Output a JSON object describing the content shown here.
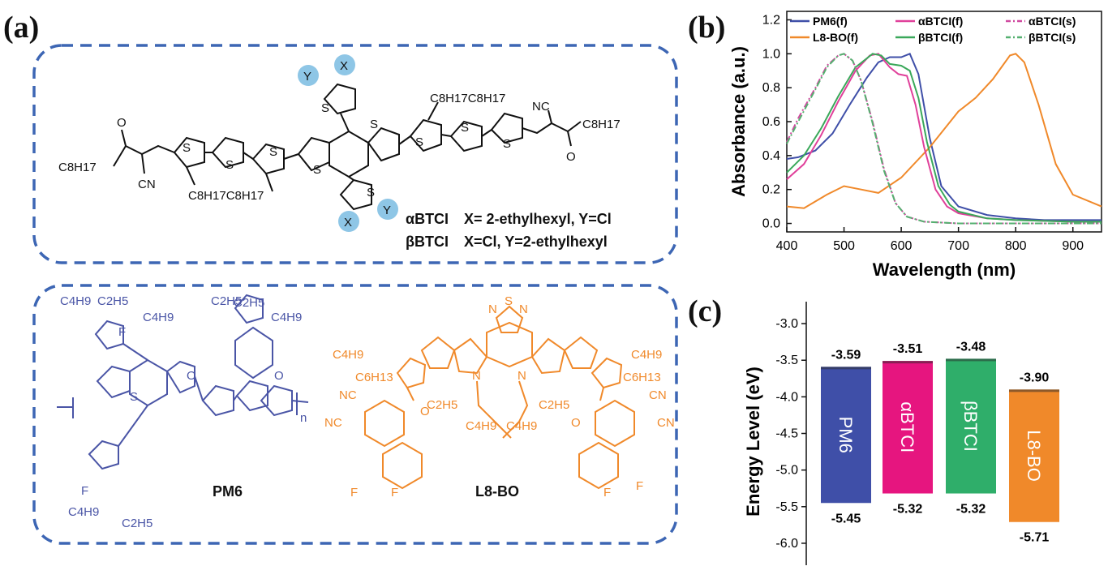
{
  "panels": {
    "a": "(a)",
    "b": "(b)",
    "c": "(c)"
  },
  "acceptor_structure": {
    "labels": {
      "x": "X",
      "y": "Y",
      "s": "S",
      "nc": "NC",
      "cn": "CN",
      "o": "O",
      "c8h17": "C8H17",
      "c8h17c8h17": "C8H17C8H17"
    },
    "line1_name": "αBTCI",
    "line1_def": "X= 2-ethylhexyl, Y=Cl",
    "line2_name": "βBTCI",
    "line2_def": "X=Cl,  Y=2-ethylhexyl"
  },
  "donor_structure": {
    "name": "PM6",
    "labels": {
      "c4h9": "C4H9",
      "c2h5": "C2H5",
      "f": "F",
      "s": "S",
      "o": "O",
      "n": "n"
    },
    "color": "#4a55a6"
  },
  "nfa_structure": {
    "name": "L8-BO",
    "labels": {
      "c4h9": "C4H9",
      "c6h13": "C6H13",
      "c2h5": "C2H5",
      "nc": "NC",
      "cn": "CN",
      "o": "O",
      "f": "F",
      "s": "S",
      "n": "N"
    },
    "color": "#f0892a"
  },
  "chart_data": [
    {
      "type": "line",
      "xlabel": "Wavelength (nm)",
      "ylabel": "Absorbance (a.u.)",
      "xlim": [
        400,
        950
      ],
      "ylim": [
        -0.05,
        1.25
      ],
      "xticks": [
        400,
        500,
        600,
        700,
        800,
        900
      ],
      "yticks": [
        "0.0",
        "0.2",
        "0.4",
        "0.6",
        "0.8",
        "1.0",
        "1.2"
      ],
      "legend_position": "top",
      "series": [
        {
          "name": "PM6(f)",
          "color": "#3f4fa8",
          "dash": "solid",
          "x": [
            400,
            420,
            450,
            480,
            510,
            540,
            560,
            580,
            600,
            615,
            630,
            650,
            670,
            700,
            750,
            800,
            850,
            900,
            950
          ],
          "y": [
            0.38,
            0.39,
            0.43,
            0.53,
            0.7,
            0.86,
            0.95,
            0.98,
            0.98,
            1.0,
            0.88,
            0.5,
            0.22,
            0.1,
            0.05,
            0.03,
            0.02,
            0.02,
            0.02
          ]
        },
        {
          "name": "L8-BO(f)",
          "color": "#f0892a",
          "dash": "solid",
          "x": [
            400,
            430,
            470,
            500,
            530,
            560,
            600,
            650,
            700,
            730,
            760,
            790,
            800,
            815,
            840,
            870,
            900,
            950
          ],
          "y": [
            0.1,
            0.09,
            0.17,
            0.22,
            0.2,
            0.18,
            0.27,
            0.45,
            0.66,
            0.74,
            0.85,
            0.99,
            1.0,
            0.95,
            0.7,
            0.35,
            0.17,
            0.1
          ]
        },
        {
          "name": "αBTCI(f)",
          "color": "#e0409a",
          "dash": "solid",
          "x": [
            400,
            430,
            460,
            490,
            520,
            545,
            560,
            580,
            595,
            610,
            625,
            640,
            660,
            680,
            700,
            750,
            800,
            900,
            950
          ],
          "y": [
            0.26,
            0.35,
            0.52,
            0.72,
            0.9,
            0.99,
            1.0,
            0.92,
            0.88,
            0.87,
            0.7,
            0.45,
            0.2,
            0.1,
            0.06,
            0.03,
            0.02,
            0.01,
            0.01
          ]
        },
        {
          "name": "βBTCI(f)",
          "color": "#3aa85a",
          "dash": "solid",
          "x": [
            400,
            430,
            460,
            490,
            520,
            550,
            565,
            580,
            600,
            615,
            630,
            645,
            665,
            685,
            700,
            750,
            800,
            900,
            950
          ],
          "y": [
            0.3,
            0.4,
            0.56,
            0.75,
            0.92,
            1.0,
            0.99,
            0.94,
            0.93,
            0.9,
            0.74,
            0.48,
            0.22,
            0.11,
            0.07,
            0.03,
            0.02,
            0.01,
            0.01
          ]
        },
        {
          "name": "αBTCI(s)",
          "color": "#d04aa0",
          "dash": "dashdot",
          "x": [
            400,
            420,
            450,
            470,
            490,
            500,
            515,
            530,
            550,
            570,
            590,
            610,
            640,
            700,
            800,
            950
          ],
          "y": [
            0.48,
            0.62,
            0.8,
            0.93,
            0.99,
            1.0,
            0.96,
            0.84,
            0.6,
            0.32,
            0.12,
            0.04,
            0.01,
            0.0,
            0.0,
            0.0
          ]
        },
        {
          "name": "βBTCI(s)",
          "color": "#55b070",
          "dash": "dashdot",
          "x": [
            400,
            420,
            450,
            470,
            490,
            500,
            515,
            530,
            550,
            570,
            590,
            610,
            640,
            700,
            800,
            950
          ],
          "y": [
            0.47,
            0.6,
            0.79,
            0.92,
            0.99,
            1.0,
            0.96,
            0.84,
            0.59,
            0.31,
            0.12,
            0.04,
            0.01,
            0.0,
            0.0,
            0.0
          ]
        }
      ]
    },
    {
      "type": "bar",
      "ylabel": "Energy Level (eV)",
      "ylim": [
        -6.3,
        -2.7
      ],
      "yticks": [
        "-3.0",
        "-3.5",
        "-4.0",
        "-4.5",
        "-5.0",
        "-5.5",
        "-6.0"
      ],
      "categories": [
        "PM6",
        "αBTCI",
        "βBTCI",
        "L8-BO"
      ],
      "lumo": [
        -3.59,
        -3.51,
        -3.48,
        -3.9
      ],
      "homo": [
        -5.45,
        -5.32,
        -5.32,
        -5.71
      ],
      "lumo_labels": [
        "-3.59",
        "-3.51",
        "-3.48",
        "-3.90"
      ],
      "homo_labels": [
        "-5.45",
        "-5.32",
        "-5.32",
        "-5.71"
      ],
      "colors": [
        "#3f4fa8",
        "#e6157f",
        "#2fae6a",
        "#f0892a"
      ]
    }
  ]
}
